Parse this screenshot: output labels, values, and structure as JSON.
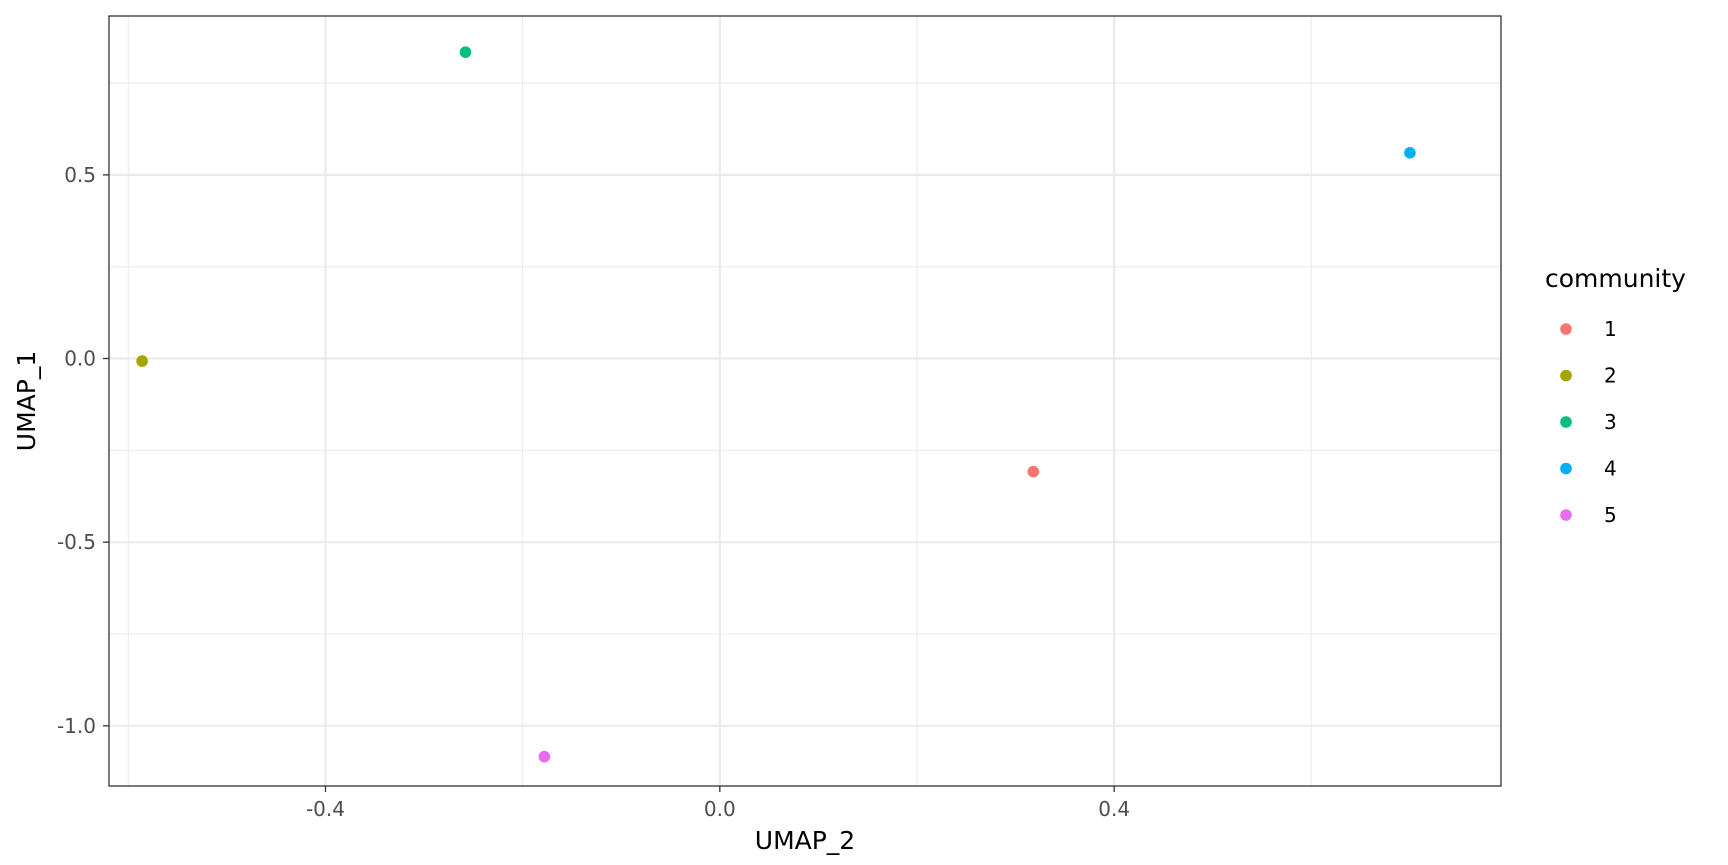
{
  "chart_data": {
    "type": "scatter",
    "xlabel": "UMAP_2",
    "ylabel": "UMAP_1",
    "xlim": [
      -0.6196,
      0.7924
    ],
    "ylim": [
      -1.1638,
      0.9325
    ],
    "x_ticks": [
      -0.4,
      0.0,
      0.4
    ],
    "x_tick_labels": [
      "-0.4",
      "0.0",
      "0.4"
    ],
    "x_minor_ticks": [
      -0.6,
      -0.2,
      0.2,
      0.6
    ],
    "y_ticks": [
      0.5,
      0.0,
      -0.5,
      -1.0
    ],
    "y_tick_labels": [
      "0.5",
      "0.0",
      "-0.5",
      "-1.0"
    ],
    "y_minor_ticks": [
      0.75,
      0.25,
      -0.25,
      -0.75
    ],
    "grid": true,
    "legend": {
      "title": "community",
      "placement": "right",
      "entries": [
        "1",
        "2",
        "3",
        "4",
        "5"
      ]
    },
    "points": [
      {
        "community": "1",
        "x": 0.318,
        "y": -0.308,
        "color": "#F8766D"
      },
      {
        "community": "2",
        "x": -0.586,
        "y": -0.007,
        "color": "#A3A500"
      },
      {
        "community": "3",
        "x": -0.258,
        "y": 0.834,
        "color": "#00BF7D"
      },
      {
        "community": "4",
        "x": 0.7,
        "y": 0.56,
        "color": "#00B0F6"
      },
      {
        "community": "5",
        "x": -0.178,
        "y": -1.084,
        "color": "#E76BF3"
      }
    ]
  }
}
